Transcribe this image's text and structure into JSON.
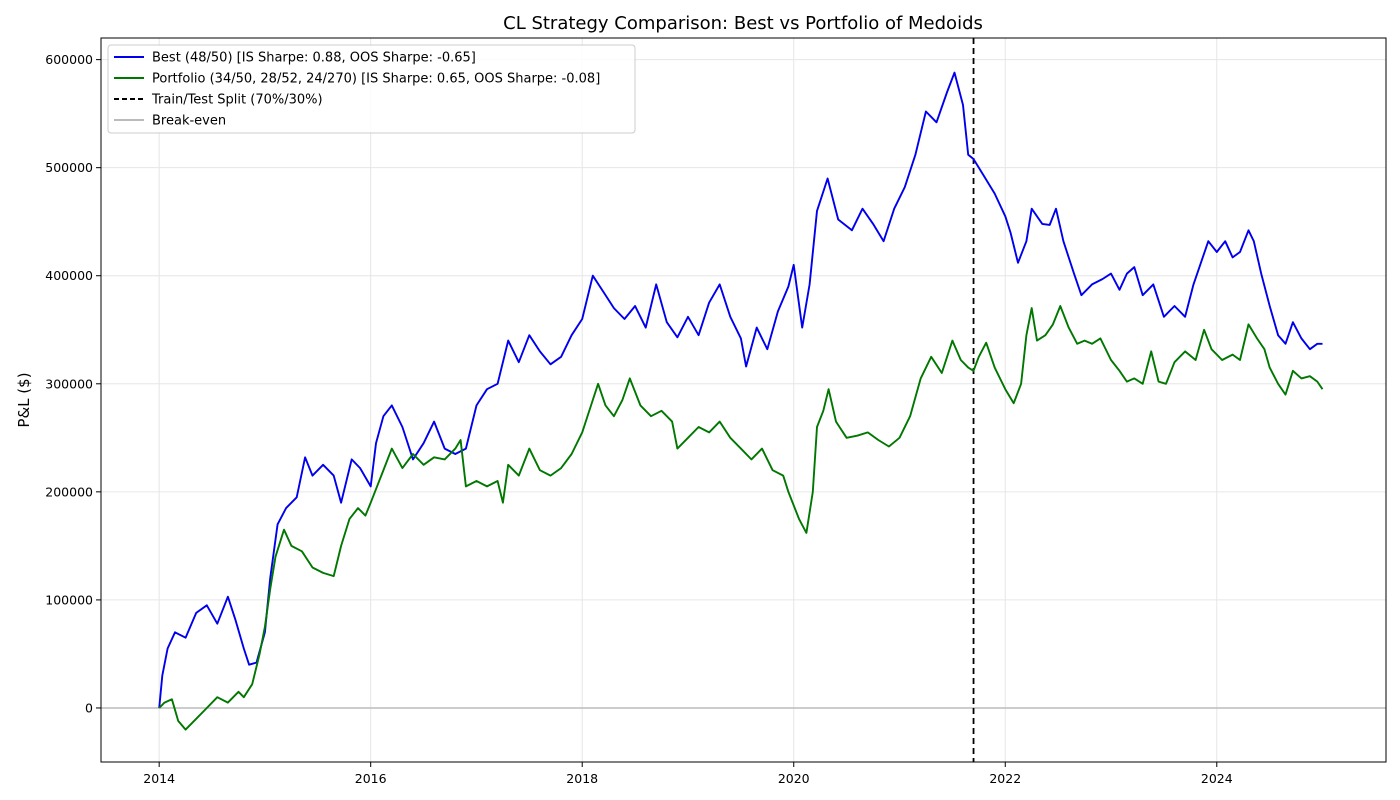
{
  "chart_data": {
    "type": "line",
    "title": "CL Strategy Comparison: Best vs Portfolio of Medoids",
    "xlabel": "",
    "ylabel": "P&L ($)",
    "xlim": [
      2013.45,
      2025.6
    ],
    "ylim": [
      -50000,
      620000
    ],
    "x_ticks": [
      2014,
      2016,
      2018,
      2020,
      2022,
      2024
    ],
    "x_tick_labels": [
      "2014",
      "2016",
      "2018",
      "2020",
      "2022",
      "2024"
    ],
    "y_ticks": [
      0,
      100000,
      200000,
      300000,
      400000,
      500000,
      600000
    ],
    "y_tick_labels": [
      "0",
      "100000",
      "200000",
      "300000",
      "400000",
      "500000",
      "600000"
    ],
    "grid": true,
    "legend_position": "top-left",
    "split_x": 2021.7,
    "breakeven_y": 0,
    "legend": [
      {
        "label": "Best (48/50) [IS Sharpe: 0.88, OOS Sharpe: -0.65]",
        "color": "#0000ee",
        "style": "solid"
      },
      {
        "label": "Portfolio (34/50, 28/52, 24/270) [IS Sharpe: 0.65, OOS Sharpe: -0.08]",
        "color": "#007700",
        "style": "solid"
      },
      {
        "label": "Train/Test Split (70%/30%)",
        "color": "#000000",
        "style": "dashed"
      },
      {
        "label": "Break-even",
        "color": "#bbbbbb",
        "style": "solid"
      }
    ],
    "series": [
      {
        "name": "Best (48/50) [IS Sharpe: 0.88, OOS Sharpe: -0.65]",
        "color": "#0000ee",
        "points": [
          [
            2014.0,
            0
          ],
          [
            2014.03,
            30000
          ],
          [
            2014.08,
            55000
          ],
          [
            2014.15,
            70000
          ],
          [
            2014.25,
            65000
          ],
          [
            2014.35,
            88000
          ],
          [
            2014.45,
            95000
          ],
          [
            2014.55,
            78000
          ],
          [
            2014.65,
            103000
          ],
          [
            2014.72,
            82000
          ],
          [
            2014.8,
            55000
          ],
          [
            2014.85,
            40000
          ],
          [
            2014.92,
            42000
          ],
          [
            2015.0,
            70000
          ],
          [
            2015.05,
            120000
          ],
          [
            2015.12,
            170000
          ],
          [
            2015.2,
            185000
          ],
          [
            2015.3,
            195000
          ],
          [
            2015.38,
            232000
          ],
          [
            2015.45,
            215000
          ],
          [
            2015.55,
            225000
          ],
          [
            2015.65,
            215000
          ],
          [
            2015.72,
            190000
          ],
          [
            2015.82,
            230000
          ],
          [
            2015.9,
            222000
          ],
          [
            2016.0,
            205000
          ],
          [
            2016.05,
            245000
          ],
          [
            2016.12,
            270000
          ],
          [
            2016.2,
            280000
          ],
          [
            2016.3,
            260000
          ],
          [
            2016.4,
            230000
          ],
          [
            2016.5,
            245000
          ],
          [
            2016.6,
            265000
          ],
          [
            2016.7,
            240000
          ],
          [
            2016.8,
            235000
          ],
          [
            2016.9,
            240000
          ],
          [
            2017.0,
            280000
          ],
          [
            2017.1,
            295000
          ],
          [
            2017.2,
            300000
          ],
          [
            2017.3,
            340000
          ],
          [
            2017.4,
            320000
          ],
          [
            2017.5,
            345000
          ],
          [
            2017.6,
            330000
          ],
          [
            2017.7,
            318000
          ],
          [
            2017.8,
            325000
          ],
          [
            2017.9,
            345000
          ],
          [
            2018.0,
            360000
          ],
          [
            2018.1,
            400000
          ],
          [
            2018.2,
            385000
          ],
          [
            2018.3,
            370000
          ],
          [
            2018.4,
            360000
          ],
          [
            2018.5,
            372000
          ],
          [
            2018.6,
            352000
          ],
          [
            2018.7,
            392000
          ],
          [
            2018.8,
            357000
          ],
          [
            2018.9,
            343000
          ],
          [
            2019.0,
            362000
          ],
          [
            2019.1,
            345000
          ],
          [
            2019.2,
            375000
          ],
          [
            2019.3,
            392000
          ],
          [
            2019.4,
            362000
          ],
          [
            2019.5,
            342000
          ],
          [
            2019.55,
            316000
          ],
          [
            2019.65,
            352000
          ],
          [
            2019.75,
            332000
          ],
          [
            2019.85,
            367000
          ],
          [
            2019.95,
            390000
          ],
          [
            2020.0,
            410000
          ],
          [
            2020.08,
            352000
          ],
          [
            2020.15,
            392000
          ],
          [
            2020.22,
            460000
          ],
          [
            2020.32,
            490000
          ],
          [
            2020.42,
            452000
          ],
          [
            2020.55,
            442000
          ],
          [
            2020.65,
            462000
          ],
          [
            2020.75,
            448000
          ],
          [
            2020.85,
            432000
          ],
          [
            2020.95,
            462000
          ],
          [
            2021.05,
            482000
          ],
          [
            2021.15,
            512000
          ],
          [
            2021.25,
            552000
          ],
          [
            2021.35,
            542000
          ],
          [
            2021.45,
            570000
          ],
          [
            2021.52,
            588000
          ],
          [
            2021.6,
            558000
          ],
          [
            2021.65,
            512000
          ],
          [
            2021.7,
            508000
          ],
          [
            2021.8,
            492000
          ],
          [
            2021.9,
            476000
          ],
          [
            2022.0,
            455000
          ],
          [
            2022.05,
            440000
          ],
          [
            2022.12,
            412000
          ],
          [
            2022.2,
            432000
          ],
          [
            2022.25,
            462000
          ],
          [
            2022.35,
            448000
          ],
          [
            2022.42,
            447000
          ],
          [
            2022.48,
            462000
          ],
          [
            2022.55,
            432000
          ],
          [
            2022.65,
            402000
          ],
          [
            2022.72,
            382000
          ],
          [
            2022.82,
            392000
          ],
          [
            2022.92,
            397000
          ],
          [
            2023.0,
            402000
          ],
          [
            2023.08,
            387000
          ],
          [
            2023.15,
            402000
          ],
          [
            2023.22,
            408000
          ],
          [
            2023.3,
            382000
          ],
          [
            2023.4,
            392000
          ],
          [
            2023.5,
            362000
          ],
          [
            2023.6,
            372000
          ],
          [
            2023.7,
            362000
          ],
          [
            2023.78,
            392000
          ],
          [
            2023.85,
            412000
          ],
          [
            2023.92,
            432000
          ],
          [
            2024.0,
            422000
          ],
          [
            2024.08,
            432000
          ],
          [
            2024.15,
            417000
          ],
          [
            2024.22,
            422000
          ],
          [
            2024.3,
            442000
          ],
          [
            2024.35,
            432000
          ],
          [
            2024.42,
            402000
          ],
          [
            2024.5,
            372000
          ],
          [
            2024.58,
            345000
          ],
          [
            2024.65,
            337000
          ],
          [
            2024.72,
            357000
          ],
          [
            2024.8,
            342000
          ],
          [
            2024.88,
            332000
          ],
          [
            2024.95,
            337000
          ],
          [
            2025.0,
            337000
          ]
        ]
      },
      {
        "name": "Portfolio (34/50, 28/52, 24/270) [IS Sharpe: 0.65, OOS Sharpe: -0.08]",
        "color": "#007700",
        "points": [
          [
            2014.0,
            0
          ],
          [
            2014.05,
            5000
          ],
          [
            2014.12,
            8000
          ],
          [
            2014.18,
            -12000
          ],
          [
            2014.25,
            -20000
          ],
          [
            2014.35,
            -10000
          ],
          [
            2014.45,
            0
          ],
          [
            2014.55,
            10000
          ],
          [
            2014.65,
            5000
          ],
          [
            2014.75,
            15000
          ],
          [
            2014.8,
            10000
          ],
          [
            2014.88,
            22000
          ],
          [
            2014.95,
            50000
          ],
          [
            2015.0,
            75000
          ],
          [
            2015.05,
            110000
          ],
          [
            2015.1,
            140000
          ],
          [
            2015.18,
            165000
          ],
          [
            2015.25,
            150000
          ],
          [
            2015.35,
            145000
          ],
          [
            2015.45,
            130000
          ],
          [
            2015.55,
            125000
          ],
          [
            2015.65,
            122000
          ],
          [
            2015.72,
            150000
          ],
          [
            2015.8,
            175000
          ],
          [
            2015.88,
            185000
          ],
          [
            2015.95,
            178000
          ],
          [
            2016.0,
            190000
          ],
          [
            2016.1,
            215000
          ],
          [
            2016.2,
            240000
          ],
          [
            2016.3,
            222000
          ],
          [
            2016.4,
            235000
          ],
          [
            2016.5,
            225000
          ],
          [
            2016.6,
            232000
          ],
          [
            2016.7,
            230000
          ],
          [
            2016.8,
            240000
          ],
          [
            2016.85,
            248000
          ],
          [
            2016.9,
            205000
          ],
          [
            2017.0,
            210000
          ],
          [
            2017.1,
            205000
          ],
          [
            2017.2,
            210000
          ],
          [
            2017.25,
            190000
          ],
          [
            2017.3,
            225000
          ],
          [
            2017.4,
            215000
          ],
          [
            2017.5,
            240000
          ],
          [
            2017.6,
            220000
          ],
          [
            2017.7,
            215000
          ],
          [
            2017.8,
            222000
          ],
          [
            2017.9,
            235000
          ],
          [
            2018.0,
            255000
          ],
          [
            2018.1,
            285000
          ],
          [
            2018.15,
            300000
          ],
          [
            2018.22,
            280000
          ],
          [
            2018.3,
            270000
          ],
          [
            2018.38,
            285000
          ],
          [
            2018.45,
            305000
          ],
          [
            2018.55,
            280000
          ],
          [
            2018.65,
            270000
          ],
          [
            2018.75,
            275000
          ],
          [
            2018.85,
            265000
          ],
          [
            2018.9,
            240000
          ],
          [
            2019.0,
            250000
          ],
          [
            2019.1,
            260000
          ],
          [
            2019.2,
            255000
          ],
          [
            2019.3,
            265000
          ],
          [
            2019.4,
            250000
          ],
          [
            2019.5,
            240000
          ],
          [
            2019.6,
            230000
          ],
          [
            2019.7,
            240000
          ],
          [
            2019.8,
            220000
          ],
          [
            2019.9,
            215000
          ],
          [
            2019.95,
            200000
          ],
          [
            2020.05,
            175000
          ],
          [
            2020.12,
            162000
          ],
          [
            2020.18,
            200000
          ],
          [
            2020.22,
            260000
          ],
          [
            2020.28,
            275000
          ],
          [
            2020.33,
            295000
          ],
          [
            2020.4,
            265000
          ],
          [
            2020.5,
            250000
          ],
          [
            2020.6,
            252000
          ],
          [
            2020.7,
            255000
          ],
          [
            2020.8,
            248000
          ],
          [
            2020.9,
            242000
          ],
          [
            2021.0,
            250000
          ],
          [
            2021.1,
            270000
          ],
          [
            2021.2,
            305000
          ],
          [
            2021.3,
            325000
          ],
          [
            2021.4,
            310000
          ],
          [
            2021.5,
            340000
          ],
          [
            2021.58,
            322000
          ],
          [
            2021.65,
            315000
          ],
          [
            2021.7,
            312000
          ],
          [
            2021.75,
            325000
          ],
          [
            2021.82,
            338000
          ],
          [
            2021.9,
            315000
          ],
          [
            2022.0,
            295000
          ],
          [
            2022.08,
            282000
          ],
          [
            2022.15,
            300000
          ],
          [
            2022.2,
            345000
          ],
          [
            2022.25,
            370000
          ],
          [
            2022.3,
            340000
          ],
          [
            2022.38,
            345000
          ],
          [
            2022.45,
            355000
          ],
          [
            2022.52,
            372000
          ],
          [
            2022.6,
            352000
          ],
          [
            2022.68,
            337000
          ],
          [
            2022.75,
            340000
          ],
          [
            2022.82,
            337000
          ],
          [
            2022.9,
            342000
          ],
          [
            2023.0,
            322000
          ],
          [
            2023.08,
            312000
          ],
          [
            2023.15,
            302000
          ],
          [
            2023.22,
            305000
          ],
          [
            2023.3,
            300000
          ],
          [
            2023.38,
            330000
          ],
          [
            2023.45,
            302000
          ],
          [
            2023.52,
            300000
          ],
          [
            2023.6,
            320000
          ],
          [
            2023.7,
            330000
          ],
          [
            2023.8,
            322000
          ],
          [
            2023.88,
            350000
          ],
          [
            2023.95,
            332000
          ],
          [
            2024.05,
            322000
          ],
          [
            2024.15,
            327000
          ],
          [
            2024.22,
            322000
          ],
          [
            2024.3,
            355000
          ],
          [
            2024.38,
            342000
          ],
          [
            2024.45,
            332000
          ],
          [
            2024.5,
            315000
          ],
          [
            2024.58,
            300000
          ],
          [
            2024.65,
            290000
          ],
          [
            2024.72,
            312000
          ],
          [
            2024.8,
            305000
          ],
          [
            2024.88,
            307000
          ],
          [
            2024.95,
            302000
          ],
          [
            2025.0,
            295000
          ]
        ]
      }
    ]
  }
}
